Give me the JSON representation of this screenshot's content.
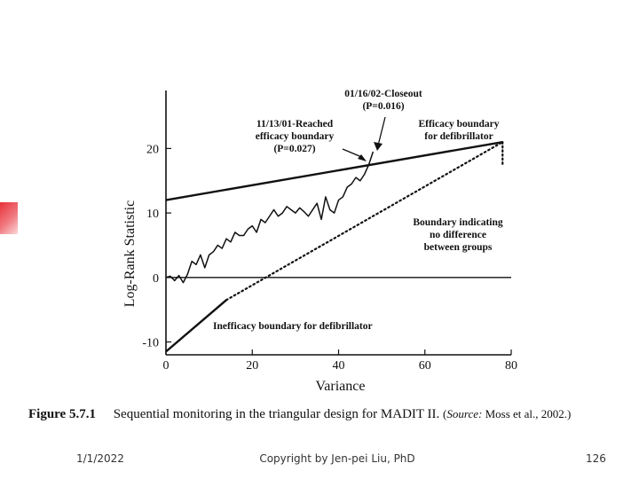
{
  "chart_data": {
    "type": "line",
    "xlabel": "Variance",
    "ylabel": "Log-Rank Statistic",
    "xlim": [
      0,
      80
    ],
    "ylim": [
      -12,
      29
    ],
    "x_ticks": [
      0,
      20,
      40,
      60,
      80
    ],
    "y_ticks": [
      -10,
      0,
      10,
      20
    ],
    "grid": false,
    "series": [
      {
        "name": "Log-rank statistic (observed)",
        "style": "solid",
        "x": [
          0,
          1,
          2,
          3,
          4,
          5,
          6,
          7,
          8,
          9,
          10,
          11,
          12,
          13,
          14,
          15,
          16,
          17,
          18,
          19,
          20,
          21,
          22,
          23,
          24,
          25,
          26,
          27,
          28,
          29,
          30,
          31,
          32,
          33,
          34,
          35,
          36,
          37,
          38,
          39,
          40,
          41,
          42,
          43,
          44,
          45,
          46,
          47,
          48
        ],
        "y": [
          0,
          0.2,
          -0.5,
          0.3,
          -0.8,
          0.5,
          2.5,
          2.0,
          3.5,
          1.5,
          3.5,
          4.0,
          5.0,
          4.5,
          6.0,
          5.5,
          7.0,
          6.5,
          6.5,
          7.5,
          8.0,
          7.0,
          9.0,
          8.5,
          9.5,
          10.5,
          9.5,
          10.0,
          11.0,
          10.5,
          10.0,
          10.8,
          10.2,
          9.5,
          10.5,
          11.5,
          9.0,
          12.5,
          10.5,
          10.0,
          12.0,
          12.5,
          14.0,
          14.5,
          15.5,
          15.0,
          16.0,
          17.5,
          19.5
        ]
      },
      {
        "name": "Efficacy boundary for defibrillator",
        "style": "solid",
        "x": [
          0,
          78
        ],
        "y": [
          12,
          21
        ]
      },
      {
        "name": "Inefficacy boundary for defibrillator",
        "style": "solid-then-dotted",
        "x": [
          0,
          14,
          78
        ],
        "y": [
          -11.5,
          -3.5,
          21
        ]
      },
      {
        "name": "Zero line",
        "style": "solid",
        "x": [
          0,
          80
        ],
        "y": [
          0,
          0
        ]
      },
      {
        "name": "Closeout",
        "style": "dotted",
        "x": [
          78,
          78
        ],
        "y": [
          21,
          17.5
        ]
      }
    ],
    "annotations": [
      {
        "id": "closeout",
        "lines": [
          "01/16/02-Closeout",
          "(P=0.016)"
        ]
      },
      {
        "id": "reached",
        "lines": [
          "11/13/01-Reached",
          "efficacy boundary",
          "(P=0.027)"
        ]
      },
      {
        "id": "efficacy",
        "lines": [
          "Efficacy boundary",
          "for defibrillator"
        ]
      },
      {
        "id": "nodiff",
        "lines": [
          "Boundary indicating",
          "no difference",
          "between groups"
        ]
      },
      {
        "id": "inefficacy",
        "lines": [
          "Inefficacy boundary for defibrillator"
        ]
      }
    ]
  },
  "caption": {
    "label": "Figure 5.7.1",
    "text": "Sequential monitoring in the triangular design for MADIT II.",
    "source_open": "(",
    "source_word": "Source:",
    "source_rest": " Moss  et al., 2002.)"
  },
  "footer": {
    "date": "1/1/2022",
    "copyright": "Copyright by Jen-pei Liu, PhD",
    "page": "126"
  },
  "colors": {
    "ink": "#111111",
    "accent": "#e8303a"
  }
}
